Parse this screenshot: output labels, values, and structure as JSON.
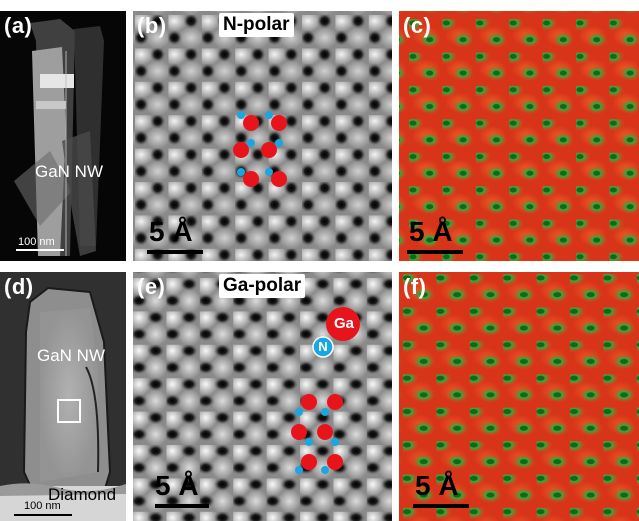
{
  "panels": {
    "a": {
      "label": "(a)",
      "nw_label": "GaN  NW",
      "scale": "100 nm"
    },
    "b": {
      "label": "(b)",
      "title": "N-polar",
      "scale": "5 Å"
    },
    "c": {
      "label": "(c)",
      "scale": "5 Å"
    },
    "d": {
      "label": "(d)",
      "nw_label": "GaN  NW",
      "substrate": "Diamond",
      "scale": "100 nm"
    },
    "e": {
      "label": "(e)",
      "title": "Ga-polar",
      "scale": "5 Å",
      "atom_ga": "Ga",
      "atom_n": "N"
    },
    "f": {
      "label": "(f)",
      "scale": "5 Å"
    }
  },
  "colors": {
    "ga_atom": "#e8141c",
    "n_atom": "#1aa6e0",
    "map_red": "#e63a1a",
    "map_green": "#2e9a3a"
  }
}
